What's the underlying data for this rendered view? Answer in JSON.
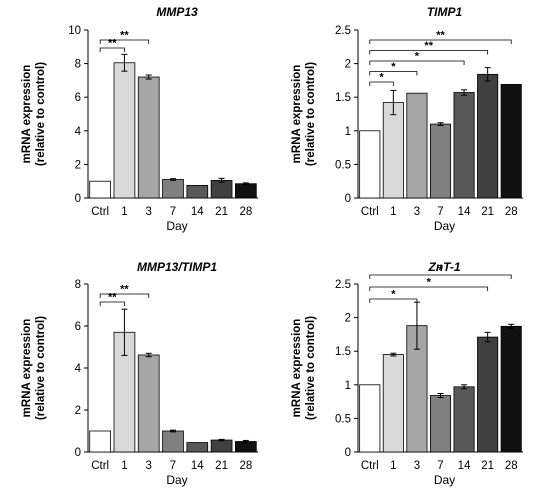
{
  "chart_data": [
    {
      "type": "bar",
      "title": "MMP13",
      "xlabel": "Day",
      "ylabel": "mRNA expression\n(relative to control)",
      "categories": [
        "Ctrl",
        "1",
        "3",
        "7",
        "14",
        "21",
        "28"
      ],
      "values": [
        1.0,
        8.05,
        7.2,
        1.1,
        0.75,
        1.05,
        0.85
      ],
      "errors": [
        0,
        0.5,
        0.12,
        0.05,
        0,
        0.12,
        0.05
      ],
      "ylim": [
        0,
        10
      ],
      "yticks": [
        0,
        2,
        4,
        6,
        8,
        10
      ],
      "colors": [
        "#ffffff",
        "#d9d9d9",
        "#a6a6a6",
        "#808080",
        "#595959",
        "#404040",
        "#111111"
      ],
      "significance": [
        {
          "from": "Ctrl",
          "to": "1",
          "label": "**"
        },
        {
          "from": "Ctrl",
          "to": "3",
          "label": "**"
        }
      ]
    },
    {
      "type": "bar",
      "title": "TIMP1",
      "xlabel": "Day",
      "ylabel": "mRNA expression\n(relative to control)",
      "categories": [
        "Ctrl",
        "1",
        "3",
        "7",
        "14",
        "21",
        "28"
      ],
      "values": [
        1.0,
        1.42,
        1.56,
        1.1,
        1.57,
        1.84,
        1.69
      ],
      "errors": [
        0,
        0.18,
        0,
        0.02,
        0.04,
        0.1,
        0
      ],
      "ylim": [
        0,
        2.5
      ],
      "yticks": [
        0,
        0.5,
        1,
        1.5,
        2,
        2.5
      ],
      "ytick_labels": [
        "0",
        "0.5",
        "1",
        "1.5",
        "2",
        "2.5"
      ],
      "colors": [
        "#ffffff",
        "#d9d9d9",
        "#a6a6a6",
        "#808080",
        "#595959",
        "#404040",
        "#111111"
      ],
      "significance": [
        {
          "from": "Ctrl",
          "to": "1",
          "label": "*"
        },
        {
          "from": "Ctrl",
          "to": "3",
          "label": "*"
        },
        {
          "from": "Ctrl",
          "to": "14",
          "label": "*"
        },
        {
          "from": "Ctrl",
          "to": "21",
          "label": "**"
        },
        {
          "from": "Ctrl",
          "to": "28",
          "label": "**"
        }
      ]
    },
    {
      "type": "bar",
      "title": "MMP13/TIMP1",
      "xlabel": "Day",
      "ylabel": "mRNA expression\n(relative to control)",
      "categories": [
        "Ctrl",
        "1",
        "3",
        "7",
        "14",
        "21",
        "28"
      ],
      "values": [
        1.0,
        5.7,
        4.62,
        1.0,
        0.45,
        0.57,
        0.5
      ],
      "errors": [
        0,
        1.1,
        0.08,
        0.04,
        0,
        0.03,
        0.05
      ],
      "ylim": [
        0,
        8
      ],
      "yticks": [
        0,
        2,
        4,
        6,
        8
      ],
      "colors": [
        "#ffffff",
        "#d9d9d9",
        "#a6a6a6",
        "#808080",
        "#595959",
        "#404040",
        "#111111"
      ],
      "significance": [
        {
          "from": "Ctrl",
          "to": "1",
          "label": "**"
        },
        {
          "from": "Ctrl",
          "to": "3",
          "label": "**"
        }
      ]
    },
    {
      "type": "bar",
      "title": "ZnT-1",
      "xlabel": "Day",
      "ylabel": "mRNA expression\n(relative to control)",
      "categories": [
        "Ctrl",
        "1",
        "3",
        "7",
        "14",
        "21",
        "28"
      ],
      "values": [
        1.0,
        1.45,
        1.88,
        0.84,
        0.97,
        1.71,
        1.87
      ],
      "errors": [
        0,
        0.02,
        0.35,
        0.03,
        0.03,
        0.07,
        0.03
      ],
      "ylim": [
        0,
        2.5
      ],
      "yticks": [
        0,
        0.5,
        1,
        1.5,
        2,
        2.5
      ],
      "ytick_labels": [
        "0",
        "0.5",
        "1",
        "1.5",
        "2",
        "2.5"
      ],
      "colors": [
        "#ffffff",
        "#d9d9d9",
        "#a6a6a6",
        "#808080",
        "#595959",
        "#404040",
        "#111111"
      ],
      "significance": [
        {
          "from": "Ctrl",
          "to": "3",
          "label": "*"
        },
        {
          "from": "Ctrl",
          "to": "21",
          "label": "*"
        },
        {
          "from": "Ctrl",
          "to": "28",
          "label": "*"
        }
      ]
    }
  ]
}
